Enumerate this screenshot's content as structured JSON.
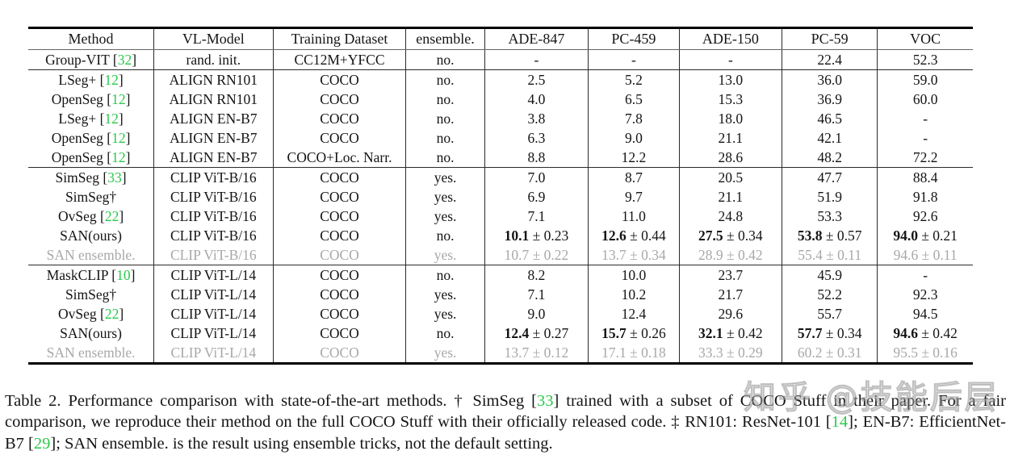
{
  "colors": {
    "accent_green": "#2bc94b",
    "muted_gray": "#a8a8a8",
    "text": "#141414",
    "background": "#ffffff"
  },
  "table": {
    "columns": [
      "Method",
      "VL-Model",
      "Training Dataset",
      "ensemble.",
      "ADE-847",
      "PC-459",
      "ADE-150",
      "PC-59",
      "VOC"
    ],
    "groups": [
      {
        "rows": [
          {
            "method": {
              "text": "Group-VIT",
              "cite": "32"
            },
            "vl_model": "rand. init.",
            "training_dataset": "CC12M+YFCC",
            "ensemble": "no.",
            "results": [
              "-",
              "-",
              "-",
              "22.4",
              "52.3"
            ],
            "muted": false,
            "bold": false
          }
        ]
      },
      {
        "rows": [
          {
            "method": {
              "text": "LSeg+",
              "cite": "12"
            },
            "vl_model": "ALIGN RN101",
            "training_dataset": "COCO",
            "ensemble": "no.",
            "results": [
              "2.5",
              "5.2",
              "13.0",
              "36.0",
              "59.0"
            ],
            "muted": false,
            "bold": false
          },
          {
            "method": {
              "text": "OpenSeg",
              "cite": "12"
            },
            "vl_model": "ALIGN RN101",
            "training_dataset": "COCO",
            "ensemble": "no.",
            "results": [
              "4.0",
              "6.5",
              "15.3",
              "36.9",
              "60.0"
            ],
            "muted": false,
            "bold": false
          },
          {
            "method": {
              "text": "LSeg+",
              "cite": "12"
            },
            "vl_model": "ALIGN EN-B7",
            "training_dataset": "COCO",
            "ensemble": "no.",
            "results": [
              "3.8",
              "7.8",
              "18.0",
              "46.5",
              "-"
            ],
            "muted": false,
            "bold": false
          },
          {
            "method": {
              "text": "OpenSeg",
              "cite": "12"
            },
            "vl_model": "ALIGN EN-B7",
            "training_dataset": "COCO",
            "ensemble": "no.",
            "results": [
              "6.3",
              "9.0",
              "21.1",
              "42.1",
              "-"
            ],
            "muted": false,
            "bold": false
          },
          {
            "method": {
              "text": "OpenSeg",
              "cite": "12"
            },
            "vl_model": "ALIGN EN-B7",
            "training_dataset": "COCO+Loc. Narr.",
            "ensemble": "no.",
            "results": [
              "8.8",
              "12.2",
              "28.6",
              "48.2",
              "72.2"
            ],
            "muted": false,
            "bold": false
          }
        ]
      },
      {
        "rows": [
          {
            "method": {
              "text": "SimSeg",
              "cite": "33"
            },
            "vl_model": "CLIP ViT-B/16",
            "training_dataset": "COCO",
            "ensemble": "yes.",
            "results": [
              "7.0",
              "8.7",
              "20.5",
              "47.7",
              "88.4"
            ],
            "muted": false,
            "bold": false
          },
          {
            "method": {
              "text": "SimSeg†"
            },
            "vl_model": "CLIP ViT-B/16",
            "training_dataset": "COCO",
            "ensemble": "yes.",
            "results": [
              "6.9",
              "9.7",
              "21.1",
              "51.9",
              "91.8"
            ],
            "muted": false,
            "bold": false
          },
          {
            "method": {
              "text": "OvSeg",
              "cite": "22"
            },
            "vl_model": "CLIP ViT-B/16",
            "training_dataset": "COCO",
            "ensemble": "yes.",
            "results": [
              "7.1",
              "11.0",
              "24.8",
              "53.3",
              "92.6"
            ],
            "muted": false,
            "bold": false
          },
          {
            "method": {
              "text": "SAN(ours)"
            },
            "vl_model": "CLIP ViT-B/16",
            "training_dataset": "COCO",
            "ensemble": "no.",
            "results": [
              {
                "v": "10.1",
                "pm": "0.23"
              },
              {
                "v": "12.6",
                "pm": "0.44"
              },
              {
                "v": "27.5",
                "pm": "0.34"
              },
              {
                "v": "53.8",
                "pm": "0.57"
              },
              {
                "v": "94.0",
                "pm": "0.21"
              }
            ],
            "muted": false,
            "bold": true
          },
          {
            "method": {
              "text": "SAN ensemble."
            },
            "vl_model": "CLIP ViT-B/16",
            "training_dataset": "COCO",
            "ensemble": "yes.",
            "results": [
              {
                "v": "10.7",
                "pm": "0.22"
              },
              {
                "v": "13.7",
                "pm": "0.34"
              },
              {
                "v": "28.9",
                "pm": "0.42"
              },
              {
                "v": "55.4",
                "pm": "0.11"
              },
              {
                "v": "94.6",
                "pm": "0.11"
              }
            ],
            "muted": true,
            "bold": false
          }
        ]
      },
      {
        "rows": [
          {
            "method": {
              "text": "MaskCLIP",
              "cite": "10"
            },
            "vl_model": "CLIP ViT-L/14",
            "training_dataset": "COCO",
            "ensemble": "no.",
            "results": [
              "8.2",
              "10.0",
              "23.7",
              "45.9",
              "-"
            ],
            "muted": false,
            "bold": false
          },
          {
            "method": {
              "text": "SimSeg†"
            },
            "vl_model": "CLIP ViT-L/14",
            "training_dataset": "COCO",
            "ensemble": "yes.",
            "results": [
              "7.1",
              "10.2",
              "21.7",
              "52.2",
              "92.3"
            ],
            "muted": false,
            "bold": false
          },
          {
            "method": {
              "text": "OvSeg",
              "cite": "22"
            },
            "vl_model": "CLIP ViT-L/14",
            "training_dataset": "COCO",
            "ensemble": "yes.",
            "results": [
              "9.0",
              "12.4",
              "29.6",
              "55.7",
              "94.5"
            ],
            "muted": false,
            "bold": false
          },
          {
            "method": {
              "text": "SAN(ours)"
            },
            "vl_model": "CLIP ViT-L/14",
            "training_dataset": "COCO",
            "ensemble": "no.",
            "results": [
              {
                "v": "12.4",
                "pm": "0.27"
              },
              {
                "v": "15.7",
                "pm": "0.26"
              },
              {
                "v": "32.1",
                "pm": "0.42"
              },
              {
                "v": "57.7",
                "pm": "0.34"
              },
              {
                "v": "94.6",
                "pm": "0.42"
              }
            ],
            "muted": false,
            "bold": true
          },
          {
            "method": {
              "text": "SAN ensemble."
            },
            "vl_model": "CLIP ViT-L/14",
            "training_dataset": "COCO",
            "ensemble": "yes.",
            "results": [
              {
                "v": "13.7",
                "pm": "0.12"
              },
              {
                "v": "17.1",
                "pm": "0.18"
              },
              {
                "v": "33.3",
                "pm": "0.29"
              },
              {
                "v": "60.2",
                "pm": "0.31"
              },
              {
                "v": "95.5",
                "pm": "0.16"
              }
            ],
            "muted": true,
            "bold": false
          }
        ]
      }
    ]
  },
  "caption": {
    "segments": [
      {
        "text": "Table 2. Performance comparison with state-of-the-art methods. † SimSeg ["
      },
      {
        "text": "33",
        "green": true
      },
      {
        "text": "] trained with a subset of COCO Stuff in their paper. For a fair comparison, we reproduce their method on the full COCO Stuff with their officially released code. ‡ RN101: ResNet-101 ["
      },
      {
        "text": "14",
        "green": true
      },
      {
        "text": "]; EN-B7: EfficientNet-B7 ["
      },
      {
        "text": "29",
        "green": true
      },
      {
        "text": "]; SAN ensemble. is the result using ensemble tricks, not the default setting."
      }
    ]
  },
  "watermark": {
    "text": "知乎 @技能后层"
  }
}
